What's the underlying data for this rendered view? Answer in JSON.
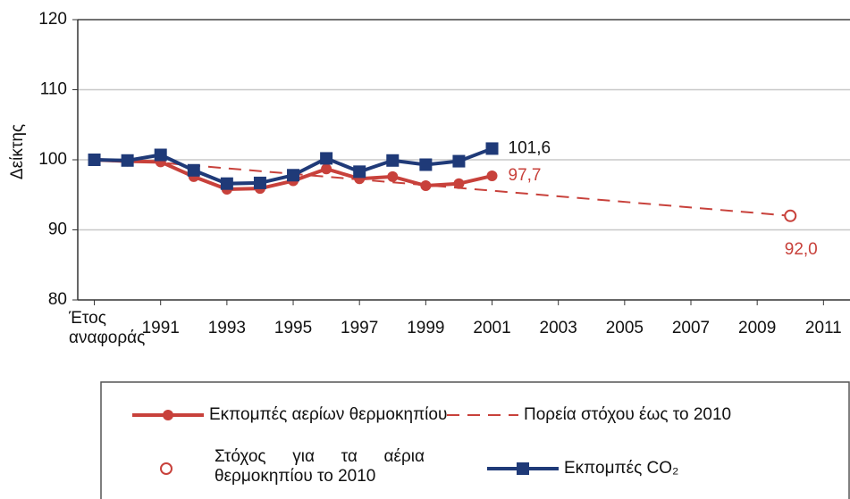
{
  "chart_data": {
    "type": "line",
    "y_label": "Δείκτης",
    "xlim": [
      1988.5,
      2011.8
    ],
    "xticks": [
      {
        "value": 1989,
        "label": "Έτος αναφοράς"
      },
      1991,
      1993,
      1995,
      1997,
      1999,
      2001,
      2003,
      2005,
      2007,
      2009,
      2011
    ],
    "ylim": [
      80,
      120
    ],
    "yticks": [
      80,
      90,
      100,
      110,
      120
    ],
    "grid": true,
    "series": [
      {
        "name": "Εκπομπές αερίων θερμοκηπίου",
        "color": "#c8413b",
        "style": "line-circle",
        "x": [
          1989,
          1990,
          1991,
          1992,
          1993,
          1994,
          1995,
          1996,
          1997,
          1998,
          1999,
          2000,
          2001
        ],
        "values": [
          100,
          99.8,
          99.7,
          97.6,
          95.8,
          95.9,
          97.0,
          98.7,
          97.3,
          97.6,
          96.3,
          96.6,
          97.7
        ],
        "value_labels": [
          null,
          null,
          null,
          null,
          null,
          null,
          null,
          null,
          null,
          null,
          null,
          null,
          "97,7"
        ]
      },
      {
        "name": "Πορεία στόχου έως το 2010",
        "color": "#c8413b",
        "style": "dashed",
        "x": [
          1991.2,
          2010
        ],
        "values": [
          99.5,
          92.0
        ]
      },
      {
        "name": "Στόχος για τα αέρια θερμοκηπίου το 2010",
        "color": "#c8413b",
        "style": "open-circle",
        "x": [
          2010
        ],
        "values": [
          92.0
        ],
        "value_labels": [
          "92,0"
        ]
      },
      {
        "name": "Εκπομπές CO₂",
        "color": "#1f3a78",
        "style": "line-square",
        "x": [
          1989,
          1990,
          1991,
          1992,
          1993,
          1994,
          1995,
          1996,
          1997,
          1998,
          1999,
          2000,
          2001
        ],
        "values": [
          100,
          99.9,
          100.7,
          98.5,
          96.6,
          96.7,
          97.8,
          100.2,
          98.3,
          99.9,
          99.3,
          99.8,
          101.6
        ],
        "value_labels": [
          null,
          null,
          null,
          null,
          null,
          null,
          null,
          null,
          null,
          null,
          null,
          null,
          "101,6"
        ]
      }
    ]
  }
}
